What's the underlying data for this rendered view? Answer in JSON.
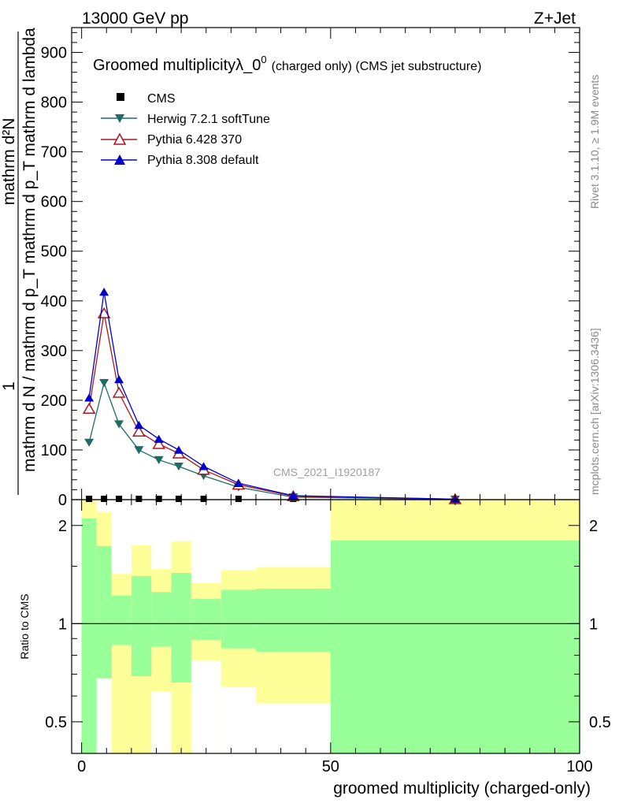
{
  "header": {
    "left": "13000 GeV pp",
    "right": "Z+Jet"
  },
  "side_labels": {
    "top": "Rivet 3.1.10, ≥ 1.9M events",
    "bottom": "mcplots.cern.ch [arXiv:1306.3436]"
  },
  "analysis_id": "CMS_2021_I1920187",
  "main_plot": {
    "title_main": "Groomed multiplicity",
    "title_symbol": "λ_0",
    "title_sup": "0",
    "title_suffix": "(charged only) (CMS jet substructure)",
    "ylabel_numerator": "mathrm d²N",
    "ylabel_numerator_line2": "mathrm d p_T mathrm d lambda",
    "ylabel_one": "1",
    "ylabel_denominator": "mathrm d N / mathrm d p_T",
    "yticks": [
      "0",
      "100",
      "200",
      "300",
      "400",
      "500",
      "600",
      "700",
      "800",
      "900"
    ]
  },
  "ratio_plot": {
    "ylabel": "Ratio to CMS",
    "yticks": [
      "0.5",
      "1",
      "2"
    ],
    "xlabel": "groomed multiplicity (charged-only)",
    "xticks": [
      "0",
      "50",
      "100"
    ]
  },
  "legend": [
    {
      "label": "CMS",
      "color": "#000000",
      "marker": "square"
    },
    {
      "label": "Herwig 7.2.1 softTune",
      "color": "#1f6b66",
      "marker": "triangle-down"
    },
    {
      "label": "Pythia 6.428 370",
      "color": "#aa1820",
      "marker": "triangle-up-open"
    },
    {
      "label": "Pythia 8.308 default",
      "color": "#0000cc",
      "marker": "triangle-up"
    }
  ],
  "colors": {
    "band_inner": "#99ff99",
    "band_outer": "#ffff99"
  },
  "chart_data": [
    {
      "type": "line",
      "title": "Groomed multiplicity λ_0^0 (charged only) (CMS jet substructure)",
      "xlabel": "groomed multiplicity (charged-only)",
      "ylabel": "1 / (mathrm d N / mathrm d p_T) · mathrm d²N / (mathrm d p_T mathrm d lambda)",
      "xlim": [
        -2,
        100
      ],
      "ylim": [
        0,
        950
      ],
      "x": [
        1.5,
        4.5,
        7.5,
        11.5,
        15.5,
        19.5,
        24.5,
        31.5,
        42.5,
        75.0
      ],
      "series": [
        {
          "name": "CMS",
          "values": [
            1.0,
            1.0,
            1.0,
            1.0,
            1.0,
            1.0,
            1.0,
            1.0,
            1.0,
            1.0
          ]
        },
        {
          "name": "Herwig 7.2.1 softTune",
          "values": [
            115,
            235,
            152,
            100,
            80,
            67,
            48,
            25,
            5,
            0.5
          ]
        },
        {
          "name": "Pythia 6.428 370",
          "values": [
            183,
            375,
            215,
            137,
            112,
            93,
            60,
            30,
            7,
            1
          ]
        },
        {
          "name": "Pythia 8.308 default",
          "values": [
            205,
            418,
            242,
            150,
            122,
            100,
            67,
            33,
            8,
            1
          ]
        }
      ]
    },
    {
      "type": "area",
      "title": "",
      "xlabel": "groomed multiplicity (charged-only)",
      "ylabel": "Ratio to CMS",
      "log_y": true,
      "ylim": [
        0.4,
        2.4
      ],
      "bin_edges": [
        0,
        3,
        6,
        10,
        14,
        18,
        22,
        28,
        35,
        50,
        100
      ],
      "inner_upper": [
        2.1,
        1.73,
        1.22,
        1.4,
        1.25,
        1.43,
        1.19,
        1.27,
        1.28,
        1.8
      ],
      "inner_lower": [
        0.4,
        0.4,
        0.68,
        0.4,
        0.4,
        0.4,
        0.4,
        0.4,
        0.4,
        0.4
      ],
      "outer_upper": [
        2.4,
        2.2,
        1.42,
        1.74,
        1.47,
        1.79,
        1.33,
        1.46,
        1.49,
        2.4
      ],
      "outer_lower": [
        0.4,
        0.4,
        0.4,
        0.4,
        0.4,
        0.4,
        0.4,
        0.4,
        0.4,
        0.4
      ],
      "inner_gap": [
        null,
        null,
        null,
        [
          0.4,
          0.68
        ],
        [
          0.4,
          0.62
        ],
        [
          0.4,
          0.66
        ],
        [
          0.4,
          0.77
        ],
        [
          0.4,
          0.64
        ],
        [
          0.4,
          0.57
        ],
        null
      ],
      "reference_line": 1.0
    }
  ]
}
